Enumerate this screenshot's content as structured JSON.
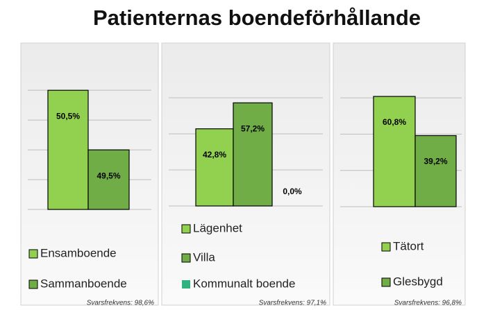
{
  "title": "Patienternas boendeförhållande",
  "chart_data": [
    {
      "type": "bar",
      "categories": [
        "Ensamboende",
        "Sammanboende"
      ],
      "colors": [
        "#92d050",
        "#70ad47"
      ],
      "values": [
        50.5,
        49.5
      ],
      "value_labels": [
        "50,5%",
        "49,5%"
      ],
      "ylim": [
        48.5,
        50.7
      ],
      "yticks": [
        48.5,
        49,
        49.5,
        50,
        50.5
      ],
      "grid": true,
      "note": "Svarsfrekvens: 98,6%"
    },
    {
      "type": "bar",
      "categories": [
        "Lägenhet",
        "Villa",
        "Kommunalt boende"
      ],
      "colors": [
        "#92d050",
        "#70ad47",
        "#2fb27d"
      ],
      "values": [
        42.8,
        57.2,
        0.0
      ],
      "value_labels": [
        "42,8%",
        "57,2%",
        "0,0%"
      ],
      "ylim": [
        0,
        70
      ],
      "yticks": [
        0,
        20,
        40,
        60
      ],
      "grid": true,
      "note": "Svarsfrekvens: 97,1%"
    },
    {
      "type": "bar",
      "categories": [
        "Tätort",
        "Glesbygd"
      ],
      "colors": [
        "#92d050",
        "#70ad47"
      ],
      "values": [
        60.8,
        39.2
      ],
      "value_labels": [
        "60,8%",
        "39,2%"
      ],
      "ylim": [
        0,
        70
      ],
      "yticks": [
        0,
        20,
        40,
        60
      ],
      "grid": true,
      "note": "Svarsfrekvens: 96,8%"
    }
  ]
}
